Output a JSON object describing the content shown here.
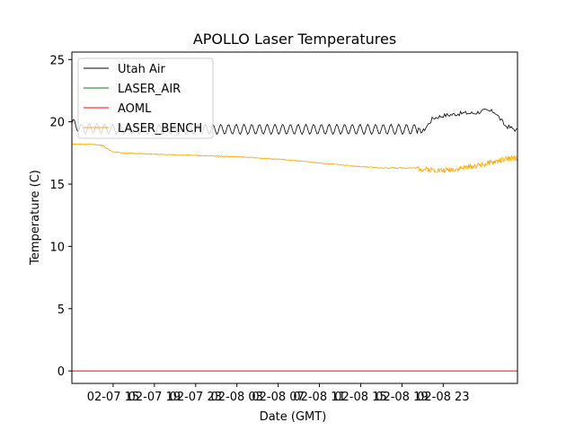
{
  "chart_data": {
    "type": "line",
    "title": "APOLLO Laser Temperatures",
    "xlabel": "Date (GMT)",
    "ylabel": "Temperature (C)",
    "xlim_hours": [
      0,
      43.2
    ],
    "ylim": [
      -1,
      25.6
    ],
    "yticks": [
      0,
      5,
      10,
      15,
      20,
      25
    ],
    "xticks": [
      {
        "hour": 4,
        "label": "02-07 15"
      },
      {
        "hour": 8,
        "label": "02-07 19"
      },
      {
        "hour": 12,
        "label": "02-07 23"
      },
      {
        "hour": 16,
        "label": "02-08 03"
      },
      {
        "hour": 20,
        "label": "02-08 07"
      },
      {
        "hour": 24,
        "label": "02-08 11"
      },
      {
        "hour": 28,
        "label": "02-08 15"
      },
      {
        "hour": 32,
        "label": "02-08 19"
      },
      {
        "hour": 36,
        "label": "02-08 23"
      }
    ],
    "legend_position": "top-left",
    "series": [
      {
        "name": "Utah Air",
        "color": "#000000",
        "x": [
          0,
          1,
          2,
          4,
          8,
          12,
          16,
          20,
          24,
          28,
          32,
          33.5,
          34,
          35,
          36,
          37,
          38,
          39,
          40,
          41,
          42,
          43.2
        ],
        "y": [
          19.9,
          19.4,
          19.5,
          19.4,
          19.4,
          19.4,
          19.4,
          19.4,
          19.4,
          19.4,
          19.4,
          19.4,
          19.2,
          20.3,
          20.5,
          20.6,
          20.7,
          20.7,
          20.9,
          20.8,
          19.7,
          19.3
        ],
        "oscillation_amplitude": 0.4
      },
      {
        "name": "LASER_AIR",
        "color": "#008000",
        "x": [],
        "y": []
      },
      {
        "name": "AOML",
        "color": "#ff0000",
        "x": [
          0,
          43.2
        ],
        "y": [
          0,
          0
        ]
      },
      {
        "name": "LASER_BENCH",
        "color": "#ffa500",
        "x": [
          0,
          2,
          3,
          3.5,
          4,
          5,
          8,
          12,
          16,
          20,
          24,
          28,
          30,
          33.5,
          34,
          36,
          38,
          40,
          42,
          43.2
        ],
        "y": [
          18.2,
          18.2,
          18.1,
          17.8,
          17.6,
          17.5,
          17.4,
          17.3,
          17.2,
          17.0,
          16.7,
          16.4,
          16.3,
          16.3,
          16.2,
          16.1,
          16.3,
          16.6,
          17.0,
          17.1
        ]
      }
    ]
  }
}
